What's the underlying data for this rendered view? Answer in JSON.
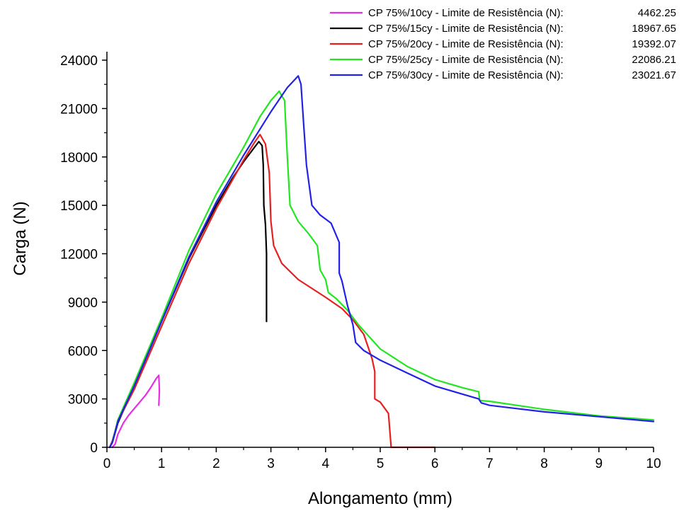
{
  "chart_data": {
    "type": "line",
    "title": "",
    "xlabel": "Alongamento (mm)",
    "ylabel": "Carga (N)",
    "xlim": [
      0,
      10
    ],
    "ylim": [
      0,
      24000
    ],
    "x_ticks": [
      "0",
      "1",
      "2",
      "3",
      "4",
      "5",
      "6",
      "7",
      "8",
      "9",
      "10"
    ],
    "y_ticks": [
      "0",
      "3000",
      "6000",
      "9000",
      "12000",
      "15000",
      "18000",
      "21000",
      "24000"
    ],
    "grid": false,
    "legend_position": "top-right",
    "series": [
      {
        "name": "CP 75%/10cy - Limite de Resistência (N):",
        "value_label": "4462.25",
        "color": "#e62ee6",
        "points": [
          [
            0.1,
            0
          ],
          [
            0.15,
            200
          ],
          [
            0.2,
            800
          ],
          [
            0.3,
            1500
          ],
          [
            0.4,
            2000
          ],
          [
            0.5,
            2400
          ],
          [
            0.6,
            2800
          ],
          [
            0.7,
            3200
          ],
          [
            0.8,
            3700
          ],
          [
            0.9,
            4250
          ],
          [
            0.95,
            4460
          ],
          [
            0.96,
            3500
          ],
          [
            0.95,
            2600
          ]
        ]
      },
      {
        "name": "CP 75%/15cy - Limite de Resistência (N):",
        "value_label": "18967.65",
        "color": "#000000",
        "points": [
          [
            0.05,
            0
          ],
          [
            0.1,
            300
          ],
          [
            0.2,
            1500
          ],
          [
            0.5,
            3800
          ],
          [
            1.0,
            7800
          ],
          [
            1.5,
            11700
          ],
          [
            2.0,
            15000
          ],
          [
            2.3,
            16700
          ],
          [
            2.5,
            17700
          ],
          [
            2.7,
            18600
          ],
          [
            2.78,
            18950
          ],
          [
            2.84,
            18700
          ],
          [
            2.86,
            17500
          ],
          [
            2.87,
            15000
          ],
          [
            2.9,
            13800
          ],
          [
            2.92,
            12000
          ],
          [
            2.92,
            7800
          ]
        ]
      },
      {
        "name": "CP 75%/20cy - Limite de Resistência (N):",
        "value_label": "19392.07",
        "color": "#e62020",
        "points": [
          [
            0.05,
            0
          ],
          [
            0.1,
            400
          ],
          [
            0.2,
            1600
          ],
          [
            0.5,
            3600
          ],
          [
            1.0,
            7500
          ],
          [
            1.5,
            11400
          ],
          [
            2.0,
            14800
          ],
          [
            2.3,
            16600
          ],
          [
            2.5,
            17800
          ],
          [
            2.7,
            18900
          ],
          [
            2.8,
            19390
          ],
          [
            2.9,
            18800
          ],
          [
            2.97,
            17000
          ],
          [
            3.0,
            14000
          ],
          [
            3.05,
            12500
          ],
          [
            3.2,
            11400
          ],
          [
            3.5,
            10400
          ],
          [
            4.0,
            9300
          ],
          [
            4.3,
            8600
          ],
          [
            4.5,
            7900
          ],
          [
            4.7,
            7000
          ],
          [
            4.85,
            5500
          ],
          [
            4.9,
            4700
          ],
          [
            4.9,
            3000
          ],
          [
            5.0,
            2800
          ],
          [
            5.15,
            2100
          ],
          [
            5.2,
            0
          ],
          [
            6.0,
            0
          ]
        ]
      },
      {
        "name": "CP 75%/25cy - Limite de Resistência (N):",
        "value_label": "22086.21",
        "color": "#22e622",
        "points": [
          [
            0.05,
            0
          ],
          [
            0.1,
            300
          ],
          [
            0.2,
            1700
          ],
          [
            0.5,
            4000
          ],
          [
            1.0,
            8000
          ],
          [
            1.5,
            12200
          ],
          [
            2.0,
            15700
          ],
          [
            2.5,
            18600
          ],
          [
            2.8,
            20500
          ],
          [
            3.0,
            21500
          ],
          [
            3.15,
            22080
          ],
          [
            3.25,
            21500
          ],
          [
            3.3,
            18000
          ],
          [
            3.35,
            15000
          ],
          [
            3.5,
            14000
          ],
          [
            3.7,
            13200
          ],
          [
            3.85,
            12500
          ],
          [
            3.9,
            11000
          ],
          [
            4.0,
            10400
          ],
          [
            4.05,
            9600
          ],
          [
            4.2,
            9200
          ],
          [
            4.4,
            8500
          ],
          [
            4.6,
            7600
          ],
          [
            5.0,
            6100
          ],
          [
            5.5,
            5000
          ],
          [
            6.0,
            4200
          ],
          [
            6.5,
            3700
          ],
          [
            6.8,
            3450
          ],
          [
            6.82,
            2900
          ],
          [
            7.0,
            2850
          ],
          [
            7.5,
            2600
          ],
          [
            8.0,
            2350
          ],
          [
            9.0,
            1950
          ],
          [
            10.0,
            1700
          ]
        ]
      },
      {
        "name": "CP 75%/30cy - Limite de Resistência (N):",
        "value_label": "23021.67",
        "color": "#2222e6",
        "points": [
          [
            0.05,
            0
          ],
          [
            0.1,
            300
          ],
          [
            0.2,
            1600
          ],
          [
            0.5,
            3800
          ],
          [
            1.0,
            7800
          ],
          [
            1.5,
            11800
          ],
          [
            2.0,
            15200
          ],
          [
            2.5,
            18100
          ],
          [
            3.0,
            20800
          ],
          [
            3.3,
            22300
          ],
          [
            3.5,
            23020
          ],
          [
            3.55,
            22500
          ],
          [
            3.6,
            20000
          ],
          [
            3.65,
            17500
          ],
          [
            3.75,
            15000
          ],
          [
            3.9,
            14400
          ],
          [
            4.1,
            13900
          ],
          [
            4.15,
            13500
          ],
          [
            4.25,
            12700
          ],
          [
            4.25,
            10800
          ],
          [
            4.3,
            10300
          ],
          [
            4.4,
            8800
          ],
          [
            4.5,
            7600
          ],
          [
            4.55,
            6500
          ],
          [
            4.7,
            6000
          ],
          [
            5.0,
            5400
          ],
          [
            5.5,
            4600
          ],
          [
            6.0,
            3800
          ],
          [
            6.5,
            3300
          ],
          [
            6.8,
            3000
          ],
          [
            6.85,
            2750
          ],
          [
            7.0,
            2600
          ],
          [
            7.5,
            2400
          ],
          [
            8.0,
            2200
          ],
          [
            9.0,
            1900
          ],
          [
            10.0,
            1600
          ]
        ]
      }
    ]
  }
}
